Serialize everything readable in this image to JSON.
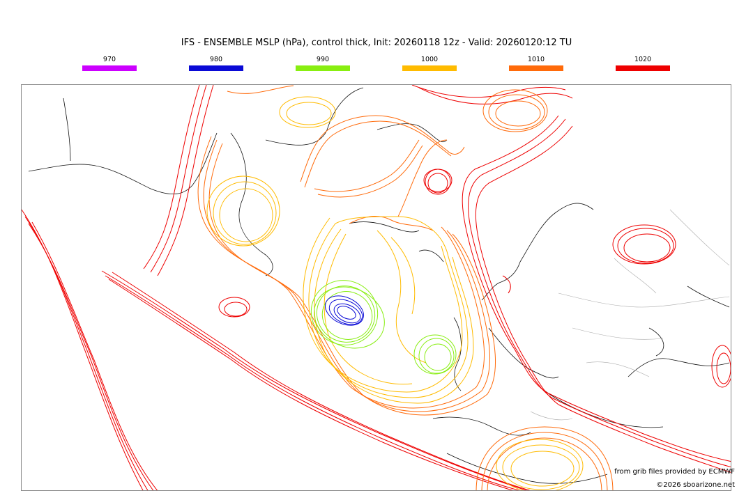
{
  "title": "IFS - ENSEMBLE MSLP (hPa), control thick, Init: 20260118 12z - Valid: 20260120:12 TU",
  "legend": [
    {
      "label": "970",
      "color": "#cc00ff"
    },
    {
      "label": "980",
      "color": "#0a0ad6"
    },
    {
      "label": "990",
      "color": "#88ee11"
    },
    {
      "label": "1000",
      "color": "#ffbb00"
    },
    {
      "label": "1010",
      "color": "#ff6a0a"
    },
    {
      "label": "1020",
      "color": "#ee0000"
    }
  ],
  "credits": {
    "source": "from grib files provided by ECMWF",
    "copyright": "©2026 sboarizone.net"
  }
}
